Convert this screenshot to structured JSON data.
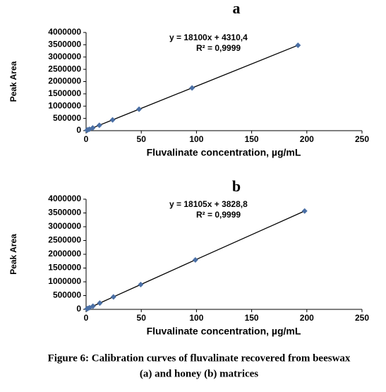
{
  "chart_data": [
    {
      "type": "scatter",
      "title": "a",
      "xlabel": "Fluvalinate concentration, µg/mL",
      "ylabel": "Peak Area",
      "annotations": [
        "y = 18100x + 4310,4",
        "R² = 0,9999"
      ],
      "series": [
        {
          "color": "#4a6fa5",
          "x": [
            0.75,
            1.5,
            3,
            6,
            12,
            24,
            48,
            96,
            192
          ],
          "values": [
            18000,
            31000,
            58000,
            113000,
            221000,
            439000,
            873000,
            1742000,
            3480000
          ]
        }
      ],
      "trendline": true,
      "xlim": [
        0,
        250
      ],
      "xticks": [
        0,
        50,
        100,
        150,
        200,
        250
      ],
      "ylim": [
        0,
        4000000
      ],
      "yticks": [
        0,
        500000,
        1000000,
        1500000,
        2000000,
        2500000,
        3000000,
        3500000,
        4000000
      ]
    },
    {
      "type": "scatter",
      "title": "b",
      "xlabel": "Fluvalinate concentration, µg/mL",
      "ylabel": "Peak Area",
      "annotations": [
        "y = 18105x + 3828,8",
        "R² = 0,9999"
      ],
      "series": [
        {
          "color": "#4a6fa5",
          "x": [
            0.78,
            1.55,
            3.1,
            6.2,
            12.4,
            24.8,
            49.5,
            99,
            198
          ],
          "values": [
            18000,
            32000,
            60000,
            116000,
            228000,
            453000,
            900000,
            1796000,
            3570000
          ]
        }
      ],
      "trendline": true,
      "xlim": [
        0,
        250
      ],
      "xticks": [
        0,
        50,
        100,
        150,
        200,
        250
      ],
      "ylim": [
        0,
        4000000
      ],
      "yticks": [
        0,
        500000,
        1000000,
        1500000,
        2000000,
        2500000,
        3000000,
        3500000,
        4000000
      ]
    }
  ],
  "caption": [
    "Figure 6: Calibration curves of fluvalinate recovered from beeswax",
    "(a) and honey (b) matrices"
  ]
}
